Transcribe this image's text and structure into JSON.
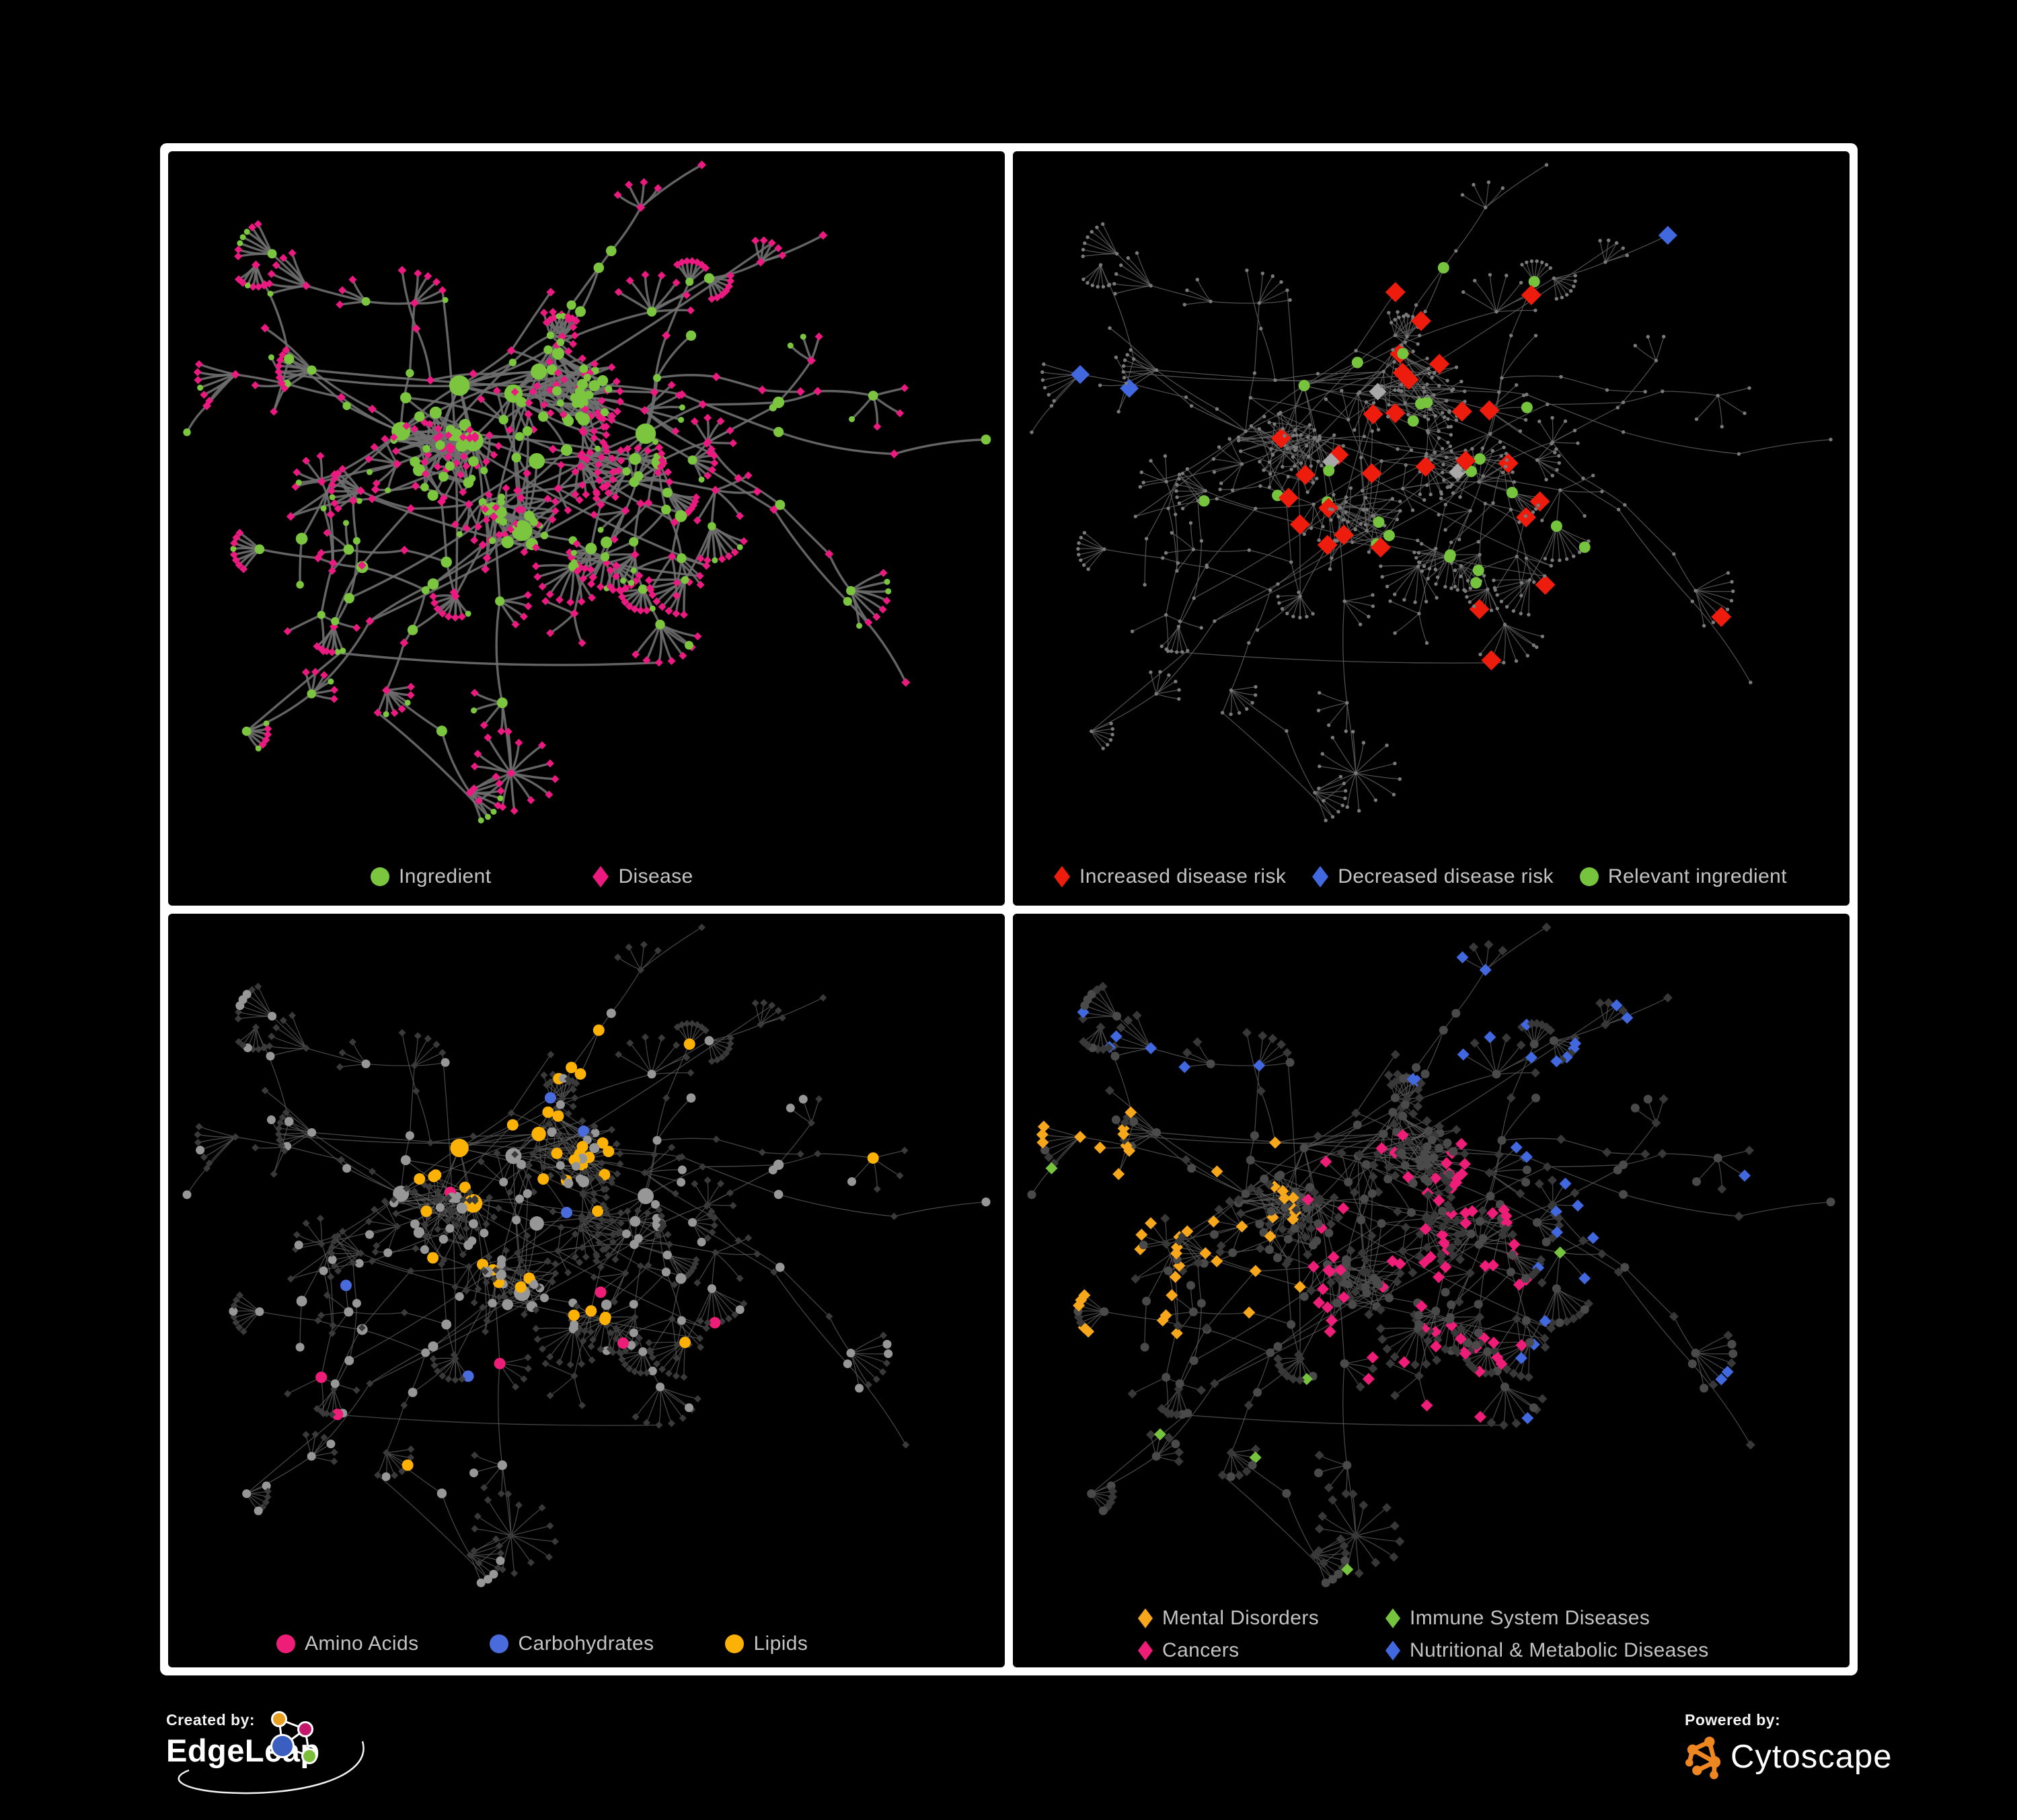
{
  "figure": {
    "background": "#000000",
    "frame_color": "#ffffff",
    "panel_background": "#000000",
    "legend_text_color": "#c3c3c3"
  },
  "panels": [
    {
      "name": "ingredient-disease-network",
      "legend": [
        {
          "label": "Ingredient",
          "shape": "circle",
          "color": "#7cc63f"
        },
        {
          "label": "Disease",
          "shape": "diamond",
          "color": "#eb1a80"
        }
      ]
    },
    {
      "name": "disease-risk-network",
      "legend": [
        {
          "label": "Increased disease risk",
          "shape": "diamond",
          "color": "#ee1c0d"
        },
        {
          "label": "Decreased disease risk",
          "shape": "diamond",
          "color": "#4168df"
        },
        {
          "label": "Relevant ingredient",
          "shape": "circle",
          "color": "#76c33e"
        }
      ]
    },
    {
      "name": "nutrient-class-network",
      "legend": [
        {
          "label": "Amino Acids",
          "shape": "circle",
          "color": "#ee1d78"
        },
        {
          "label": "Carbohydrates",
          "shape": "circle",
          "color": "#4a6bdb"
        },
        {
          "label": "Lipids",
          "shape": "circle",
          "color": "#fbb105"
        }
      ]
    },
    {
      "name": "disease-class-network",
      "legend": [
        {
          "label": "Mental Disorders",
          "shape": "diamond",
          "color": "#f6a71b"
        },
        {
          "label": "Immune System Diseases",
          "shape": "diamond",
          "color": "#76c33e"
        },
        {
          "label": "Cancers",
          "shape": "diamond",
          "color": "#ee1d78"
        },
        {
          "label": "Nutritional & Metabolic Diseases",
          "shape": "diamond",
          "color": "#4168df"
        }
      ]
    }
  ],
  "footer": {
    "created_by_label": "Created by:",
    "created_by_name": "EdgeLeap",
    "powered_by_label": "Powered by:",
    "powered_by_name": "Cytoscape",
    "edgeleap_logo_colors": [
      "#e8a020",
      "#c4176b",
      "#3b5fc0",
      "#7cbe3c"
    ],
    "cytoscape_logo_color": "#ee8722"
  },
  "network": {
    "seed": 42,
    "class_seed": 7,
    "panel_styles": [
      {
        "edge_color": "#6f6f6f",
        "edge_width": 3.4,
        "edge_opacity": 0.9,
        "curve": 0.2,
        "ingredient_color": "#7cc63f",
        "disease_color": "#eb1a80"
      },
      {
        "edge_color": "#646464",
        "edge_width": 1.25,
        "edge_opacity": 0.8,
        "curve": 0.12,
        "base_color": "#7a7a7a",
        "increased_color": "#ee1c0d",
        "decreased_color": "#4168df",
        "neutral_color": "#a8a8a8",
        "relevant_color": "#76c33e"
      },
      {
        "edge_color": "#5c5c5c",
        "edge_width": 1.3,
        "edge_opacity": 0.75,
        "curve": 0.12,
        "ingredient_color": "#979797",
        "disease_color": "#3a3a3a",
        "amino_color": "#ee1d78",
        "carb_color": "#4a6bdb",
        "lipid_color": "#fbb105"
      },
      {
        "edge_color": "#5c5c5c",
        "edge_width": 1.3,
        "edge_opacity": 0.75,
        "curve": 0.12,
        "ingredient_color": "#4a4a4a",
        "disease_color": "#383838",
        "mental_color": "#f6a71b",
        "immune_color": "#76c33e",
        "cancer_color": "#ee1d78",
        "metabolic_color": "#4168df"
      }
    ]
  }
}
